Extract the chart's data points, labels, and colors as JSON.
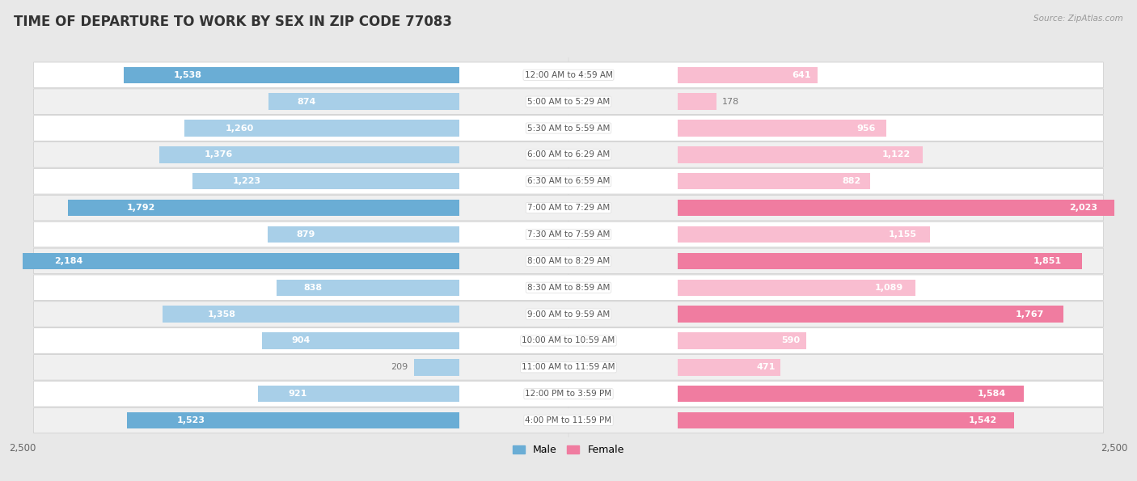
{
  "title": "TIME OF DEPARTURE TO WORK BY SEX IN ZIP CODE 77083",
  "source": "Source: ZipAtlas.com",
  "categories": [
    "12:00 AM to 4:59 AM",
    "5:00 AM to 5:29 AM",
    "5:30 AM to 5:59 AM",
    "6:00 AM to 6:29 AM",
    "6:30 AM to 6:59 AM",
    "7:00 AM to 7:29 AM",
    "7:30 AM to 7:59 AM",
    "8:00 AM to 8:29 AM",
    "8:30 AM to 8:59 AM",
    "9:00 AM to 9:59 AM",
    "10:00 AM to 10:59 AM",
    "11:00 AM to 11:59 AM",
    "12:00 PM to 3:59 PM",
    "4:00 PM to 11:59 PM"
  ],
  "male": [
    1538,
    874,
    1260,
    1376,
    1223,
    1792,
    879,
    2184,
    838,
    1358,
    904,
    209,
    921,
    1523
  ],
  "female": [
    641,
    178,
    956,
    1122,
    882,
    2023,
    1155,
    1851,
    1089,
    1767,
    590,
    471,
    1584,
    1542
  ],
  "male_color_light": "#a8cfe8",
  "male_color_dark": "#6aadd5",
  "female_color_light": "#f9bdd0",
  "female_color_dark": "#f07ca0",
  "male_threshold": 1500,
  "female_threshold": 1500,
  "axis_max": 2500,
  "bg_color": "#e8e8e8",
  "row_color_even": "#ffffff",
  "row_color_odd": "#f0f0f0",
  "title_fontsize": 12,
  "label_fontsize": 8,
  "category_fontsize": 7.5,
  "bar_height": 0.62,
  "label_half": 500,
  "inside_label_threshold": 400,
  "label_color_inside": "#ffffff",
  "label_color_outside": "#777777",
  "category_label_color": "#555555"
}
